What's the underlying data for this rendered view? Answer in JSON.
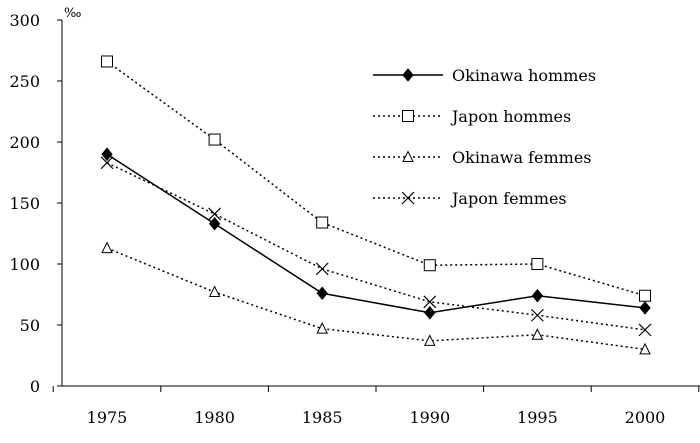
{
  "chart_data": {
    "type": "line",
    "title": "",
    "xlabel": "",
    "ylabel": "",
    "unit": "‰",
    "categories": [
      "1975",
      "1980",
      "1985",
      "1990",
      "1995",
      "2000"
    ],
    "ylim": [
      0,
      300
    ],
    "yticks": [
      0,
      50,
      100,
      150,
      200,
      250,
      300
    ],
    "grid": false,
    "legend": "top-right",
    "series": [
      {
        "name": "Okinawa hommes",
        "values": [
          190,
          133,
          76,
          60,
          74,
          64
        ],
        "marker": "filled-diamond",
        "line": "solid",
        "color": "#000000"
      },
      {
        "name": "Japon hommes",
        "values": [
          266,
          202,
          134,
          99,
          100,
          74
        ],
        "marker": "open-square",
        "line": "dotted",
        "color": "#000000"
      },
      {
        "name": "Okinawa femmes",
        "values": [
          113,
          77,
          47,
          37,
          42,
          30
        ],
        "marker": "open-triangle",
        "line": "dotted",
        "color": "#000000"
      },
      {
        "name": "Japon femmes",
        "values": [
          183,
          141,
          96,
          69,
          58,
          46
        ],
        "marker": "x-cross",
        "line": "dotted",
        "color": "#000000"
      }
    ]
  }
}
